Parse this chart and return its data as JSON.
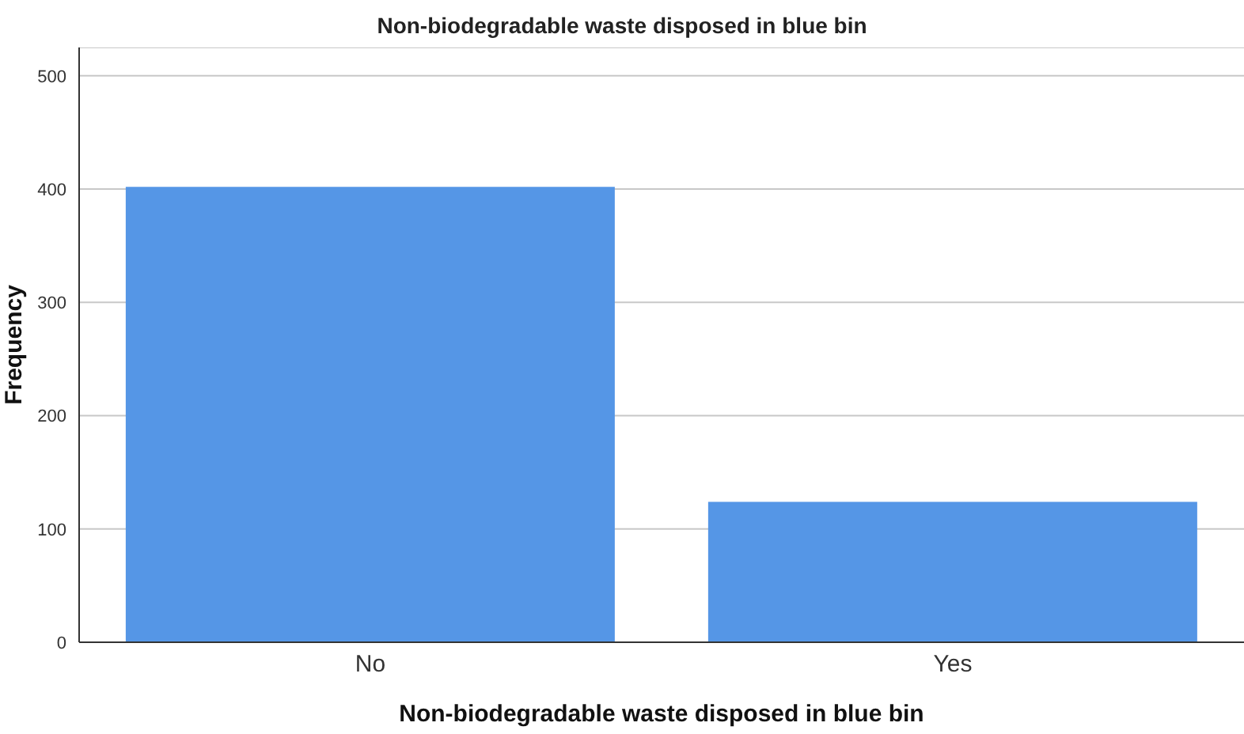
{
  "chart_data": {
    "type": "bar",
    "title": "Non-biodegradable waste disposed in blue bin",
    "xlabel": "Non-biodegradable waste disposed in blue bin",
    "ylabel": "Frequency",
    "categories": [
      "No",
      "Yes"
    ],
    "values": [
      402,
      124
    ],
    "color": "#5596e6",
    "ylim": [
      0,
      525
    ],
    "yticks": [
      0,
      100,
      200,
      300,
      400,
      500
    ],
    "grid": "y",
    "legend": false
  }
}
